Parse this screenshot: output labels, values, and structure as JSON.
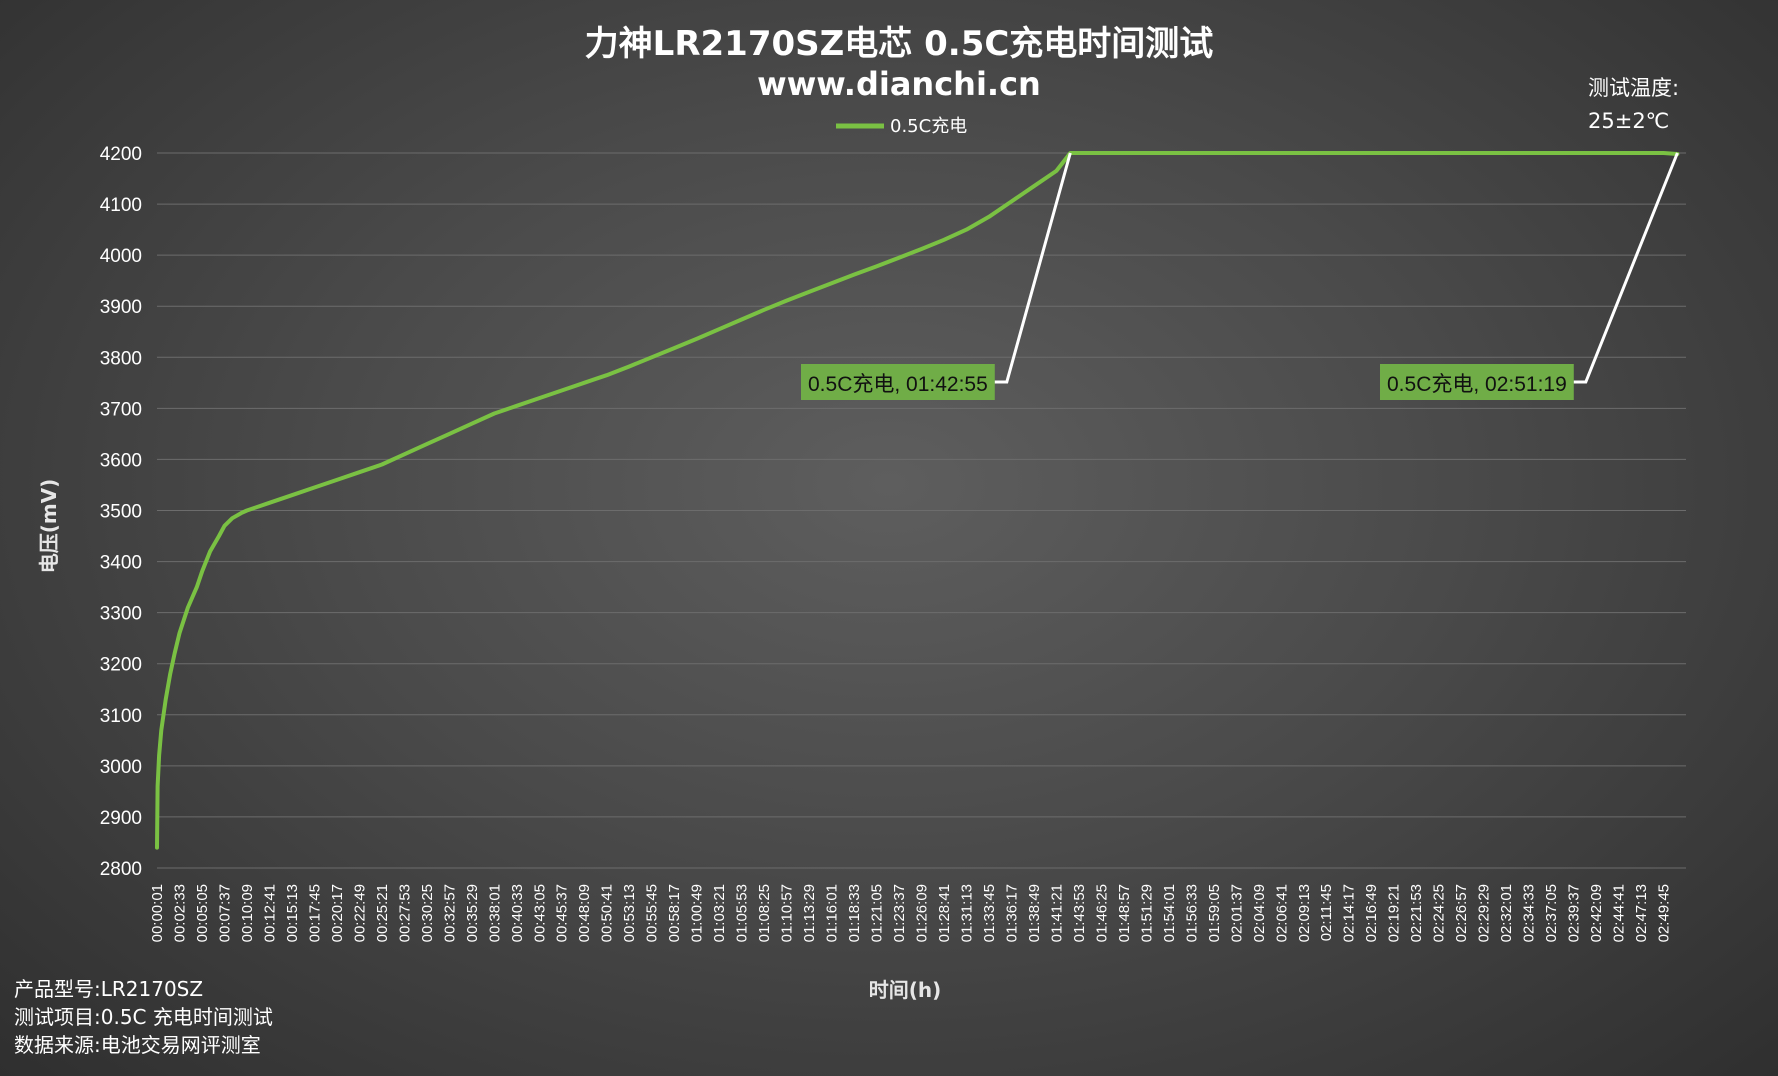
{
  "header": {
    "title": "力神LR2170SZ电芯 0.5C充电时间测试",
    "subtitle": "www.dianchi.cn"
  },
  "legend": {
    "label": "0.5C充电"
  },
  "temperature_note": {
    "line1": "测试温度:",
    "line2": "25±2℃"
  },
  "footer": {
    "model": "产品型号:LR2170SZ",
    "test_item": "测试项目:0.5C 充电时间测试",
    "source": "数据来源:电池交易网评测室"
  },
  "annotations": [
    {
      "text": "0.5C充电, 01:42:55",
      "x": "01:42:55",
      "y": 4200
    },
    {
      "text": "0.5C充电, 02:51:19",
      "x": "02:51:19",
      "y": 4200
    }
  ],
  "colors": {
    "series": "#7ac143",
    "grid": "#6c6c6c",
    "callout_bg": "#70ad47"
  },
  "chart_data": {
    "type": "line",
    "title": "力神LR2170SZ电芯 0.5C充电时间测试",
    "subtitle": "www.dianchi.cn",
    "xlabel": "时间(h)",
    "ylabel": "电压(mV)",
    "ylim": [
      2800,
      4200
    ],
    "y_ticks": [
      4200,
      4100,
      4000,
      3900,
      3800,
      3700,
      3600,
      3500,
      3400,
      3300,
      3200,
      3100,
      3000,
      2900,
      2800
    ],
    "x_tick_labels": [
      "00:00:01",
      "00:02:33",
      "00:05:05",
      "00:07:37",
      "00:10:09",
      "00:12:41",
      "00:15:13",
      "00:17:45",
      "00:20:17",
      "00:22:49",
      "00:25:21",
      "00:27:53",
      "00:30:25",
      "00:32:57",
      "00:35:29",
      "00:38:01",
      "00:40:33",
      "00:43:05",
      "00:45:37",
      "00:48:09",
      "00:50:41",
      "00:53:13",
      "00:55:45",
      "00:58:17",
      "01:00:49",
      "01:03:21",
      "01:05:53",
      "01:08:25",
      "01:10:57",
      "01:13:29",
      "01:16:01",
      "01:18:33",
      "01:21:05",
      "01:23:37",
      "01:26:09",
      "01:28:41",
      "01:31:13",
      "01:33:45",
      "01:36:17",
      "01:38:49",
      "01:41:21",
      "01:43:53",
      "01:46:25",
      "01:48:57",
      "01:51:29",
      "01:54:01",
      "01:56:33",
      "01:59:05",
      "02:01:37",
      "02:04:09",
      "02:06:41",
      "02:09:13",
      "02:11:45",
      "02:14:17",
      "02:16:49",
      "02:19:21",
      "02:21:53",
      "02:24:25",
      "02:26:57",
      "02:29:29",
      "02:32:01",
      "02:34:33",
      "02:37:05",
      "02:39:37",
      "02:42:09",
      "02:44:41",
      "02:47:13",
      "02:49:45"
    ],
    "grid": true,
    "legend_position": "top-center",
    "series": [
      {
        "name": "0.5C充电",
        "x": [
          "00:00:01",
          "00:00:05",
          "00:00:15",
          "00:00:30",
          "00:01:00",
          "00:01:30",
          "00:02:00",
          "00:02:33",
          "00:03:30",
          "00:04:30",
          "00:05:05",
          "00:06:00",
          "00:07:00",
          "00:07:37",
          "00:08:30",
          "00:09:30",
          "00:10:09",
          "00:12:41",
          "00:15:13",
          "00:17:45",
          "00:20:17",
          "00:22:49",
          "00:25:21",
          "00:27:53",
          "00:30:25",
          "00:32:57",
          "00:35:29",
          "00:38:01",
          "00:40:33",
          "00:43:05",
          "00:45:37",
          "00:48:09",
          "00:50:41",
          "00:53:13",
          "00:55:45",
          "00:58:17",
          "01:00:49",
          "01:03:21",
          "01:05:53",
          "01:08:25",
          "01:10:57",
          "01:13:29",
          "01:16:01",
          "01:18:33",
          "01:21:05",
          "01:23:37",
          "01:26:09",
          "01:28:41",
          "01:31:13",
          "01:33:45",
          "01:36:17",
          "01:38:49",
          "01:41:21",
          "01:42:55",
          "01:46:25",
          "01:51:29",
          "01:59:05",
          "02:06:41",
          "02:14:17",
          "02:21:53",
          "02:29:29",
          "02:37:05",
          "02:44:41",
          "02:49:45",
          "02:51:19"
        ],
        "y": [
          2840,
          2960,
          3020,
          3070,
          3130,
          3180,
          3220,
          3260,
          3310,
          3350,
          3380,
          3420,
          3450,
          3470,
          3485,
          3495,
          3500,
          3515,
          3530,
          3545,
          3560,
          3575,
          3590,
          3610,
          3630,
          3650,
          3670,
          3690,
          3705,
          3720,
          3735,
          3750,
          3765,
          3782,
          3800,
          3818,
          3836,
          3855,
          3874,
          3893,
          3911,
          3928,
          3945,
          3962,
          3978,
          3995,
          4012,
          4030,
          4050,
          4075,
          4105,
          4135,
          4165,
          4200,
          4200,
          4200,
          4200,
          4200,
          4200,
          4200,
          4200,
          4200,
          4200,
          4200,
          4198
        ]
      }
    ]
  }
}
